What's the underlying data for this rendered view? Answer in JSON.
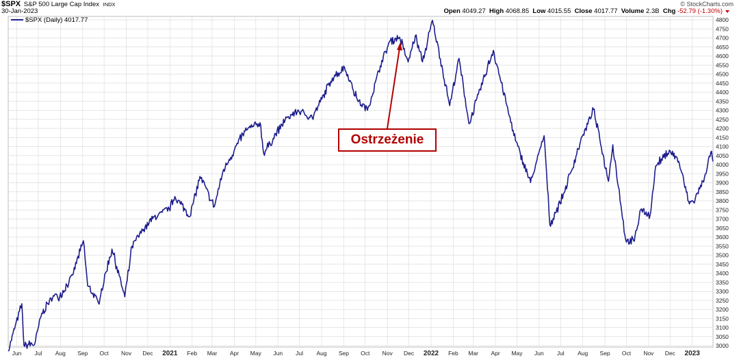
{
  "header": {
    "symbol": "$SPX",
    "name": "S&P 500 Large Cap Index",
    "exchange": "INDX",
    "date": "30-Jan-2023",
    "credit": "© StockCharts.com",
    "quote": {
      "open_label": "Open",
      "open": "4049.27",
      "high_label": "High",
      "high": "4068.85",
      "low_label": "Low",
      "low": "4015.55",
      "close_label": "Close",
      "close": "4017.77",
      "volume_label": "Volume",
      "volume": "2.3B",
      "chg_label": "Chg",
      "chg": "-52.79 (-1.30%)"
    }
  },
  "legend": {
    "text": "$SPX (Daily) 4017.77"
  },
  "annotation": {
    "text": "Ostrzeżenie"
  },
  "colors": {
    "line": "#1c1c8c",
    "grid": "#dedede",
    "annotation": "#b30000",
    "negative": "#c00000"
  },
  "chart_data": {
    "type": "line",
    "title": "",
    "xlabel": "",
    "ylabel": "",
    "ylim": [
      3000,
      4820
    ],
    "y_axis_side": "right",
    "grid": true,
    "yticks": [
      3000,
      3050,
      3100,
      3150,
      3200,
      3250,
      3300,
      3350,
      3400,
      3450,
      3500,
      3550,
      3600,
      3650,
      3700,
      3750,
      3800,
      3850,
      3900,
      3950,
      4000,
      4050,
      4100,
      4150,
      4200,
      4250,
      4300,
      4350,
      4400,
      4450,
      4500,
      4550,
      4600,
      4650,
      4700,
      4750,
      4800
    ],
    "xticks": [
      {
        "label": "Jun",
        "date": "2020-06-01"
      },
      {
        "label": "Jul",
        "date": "2020-07-01"
      },
      {
        "label": "Aug",
        "date": "2020-08-01"
      },
      {
        "label": "Sep",
        "date": "2020-09-01"
      },
      {
        "label": "Oct",
        "date": "2020-10-01"
      },
      {
        "label": "Nov",
        "date": "2020-11-01"
      },
      {
        "label": "Dec",
        "date": "2020-12-01"
      },
      {
        "label": "2021",
        "date": "2021-01-01"
      },
      {
        "label": "Feb",
        "date": "2021-02-01"
      },
      {
        "label": "Mar",
        "date": "2021-03-01"
      },
      {
        "label": "Apr",
        "date": "2021-04-01"
      },
      {
        "label": "May",
        "date": "2021-05-01"
      },
      {
        "label": "Jun",
        "date": "2021-06-01"
      },
      {
        "label": "Jul",
        "date": "2021-07-01"
      },
      {
        "label": "Aug",
        "date": "2021-08-01"
      },
      {
        "label": "Sep",
        "date": "2021-09-01"
      },
      {
        "label": "Oct",
        "date": "2021-10-01"
      },
      {
        "label": "Nov",
        "date": "2021-11-01"
      },
      {
        "label": "Dec",
        "date": "2021-12-01"
      },
      {
        "label": "2022",
        "date": "2022-01-01"
      },
      {
        "label": "Feb",
        "date": "2022-02-01"
      },
      {
        "label": "Mar",
        "date": "2022-03-01"
      },
      {
        "label": "Apr",
        "date": "2022-04-01"
      },
      {
        "label": "May",
        "date": "2022-05-01"
      },
      {
        "label": "Jun",
        "date": "2022-06-01"
      },
      {
        "label": "Jul",
        "date": "2022-07-01"
      },
      {
        "label": "Aug",
        "date": "2022-08-01"
      },
      {
        "label": "Sep",
        "date": "2022-09-01"
      },
      {
        "label": "Oct",
        "date": "2022-10-01"
      },
      {
        "label": "Nov",
        "date": "2022-11-01"
      },
      {
        "label": "Dec",
        "date": "2022-12-01"
      },
      {
        "label": "2023",
        "date": "2023-01-01"
      }
    ],
    "bold_xticks": [
      "2021",
      "2022",
      "2023"
    ],
    "series": [
      {
        "name": "$SPX (Daily)",
        "x": [
          "2020-05-20",
          "2020-06-08",
          "2020-06-11",
          "2020-06-26",
          "2020-07-06",
          "2020-07-22",
          "2020-07-31",
          "2020-08-18",
          "2020-09-02",
          "2020-09-08",
          "2020-09-23",
          "2020-10-12",
          "2020-10-30",
          "2020-11-09",
          "2020-11-24",
          "2020-12-08",
          "2020-12-31",
          "2021-01-08",
          "2021-01-29",
          "2021-02-12",
          "2021-03-04",
          "2021-03-17",
          "2021-04-16",
          "2021-05-07",
          "2021-05-12",
          "2021-06-11",
          "2021-06-30",
          "2021-07-19",
          "2021-08-16",
          "2021-09-02",
          "2021-09-20",
          "2021-10-04",
          "2021-10-22",
          "2021-11-04",
          "2021-11-18",
          "2021-11-30",
          "2021-12-10",
          "2021-12-20",
          "2022-01-03",
          "2022-01-27",
          "2022-02-09",
          "2022-02-23",
          "2022-03-29",
          "2022-04-29",
          "2022-05-20",
          "2022-06-08",
          "2022-06-16",
          "2022-07-06",
          "2022-07-29",
          "2022-08-16",
          "2022-09-06",
          "2022-09-12",
          "2022-09-30",
          "2022-10-12",
          "2022-10-21",
          "2022-11-03",
          "2022-11-11",
          "2022-11-30",
          "2022-12-13",
          "2022-12-28",
          "2023-01-05",
          "2023-01-18",
          "2023-01-27",
          "2023-01-30"
        ],
        "values": [
          2970,
          3232,
          3002,
          3009,
          3180,
          3276,
          3271,
          3390,
          3580,
          3331,
          3237,
          3534,
          3270,
          3550,
          3636,
          3702,
          3756,
          3824,
          3714,
          3935,
          3768,
          3974,
          4185,
          4232,
          4063,
          4247,
          4298,
          4258,
          4479,
          4537,
          4358,
          4300,
          4545,
          4680,
          4704,
          4567,
          4712,
          4568,
          4797,
          4326,
          4587,
          4226,
          4631,
          4132,
          3901,
          4160,
          3667,
          3845,
          4130,
          4305,
          3908,
          4110,
          3585,
          3577,
          3752,
          3719,
          3993,
          4080,
          4019,
          3783,
          3808,
          3928,
          4070,
          4017.77
        ]
      }
    ]
  }
}
